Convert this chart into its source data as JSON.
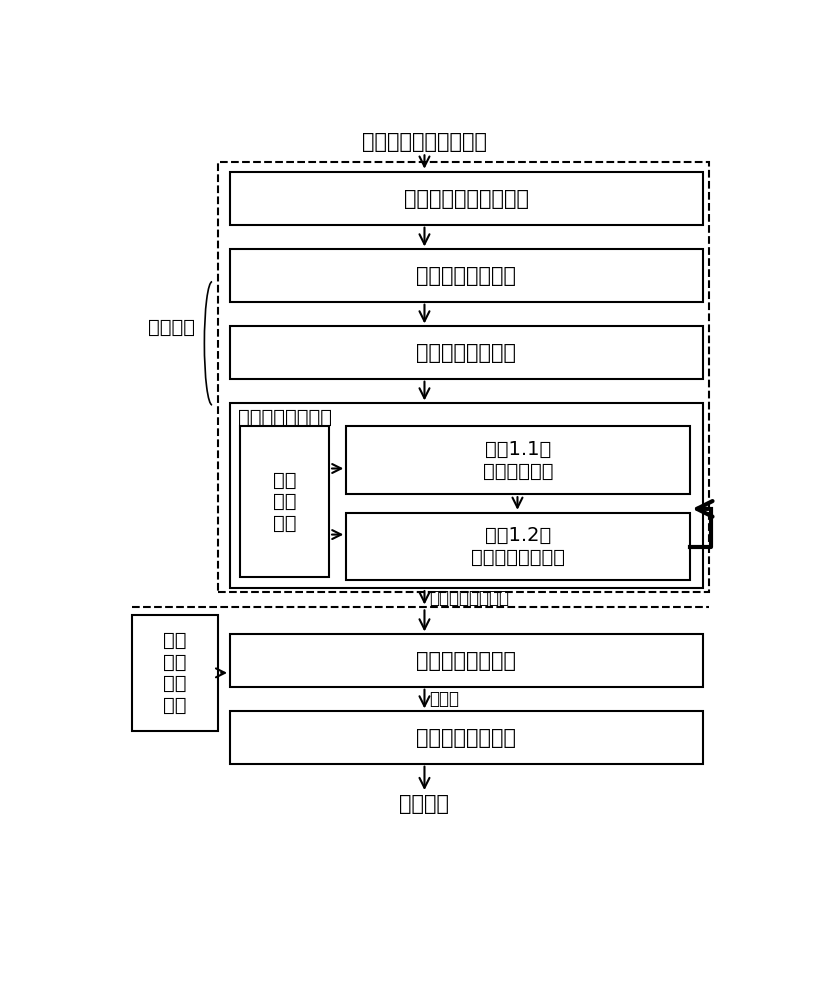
{
  "title_top": "输入符号编码图像序列",
  "title_bottom": "深度点云",
  "label_fuhao_jiema": "符号解码",
  "label_cankao_line1": "参考",
  "label_cankao_line2": "符号",
  "label_cankao_line3": "解码",
  "label_cankao_line4": "图像",
  "box1_text": "步骤１：自适应预处理",
  "box2_text": "步骤２：符号定位",
  "box3_text": "步骤３：符号识别",
  "box4_label": "步骤４：符号校正",
  "box4a_line1": "符号",
  "box4a_line2": "编码",
  "box4a_line3": "规则",
  "box4b_line1": "步骤1.1：",
  "box4b_line2": "符号初次校正",
  "box4c_line1": "步骤1.2：",
  "box4c_line2": "符号循环校正填补",
  "label_input_decode": "输入符号解码图像",
  "label_shichazhi": "视差値",
  "box5_text": "步骤５：符号匹配",
  "box6_text": "步骤６：深度计算",
  "bg_color": "#ffffff",
  "text_color": "#000000"
}
